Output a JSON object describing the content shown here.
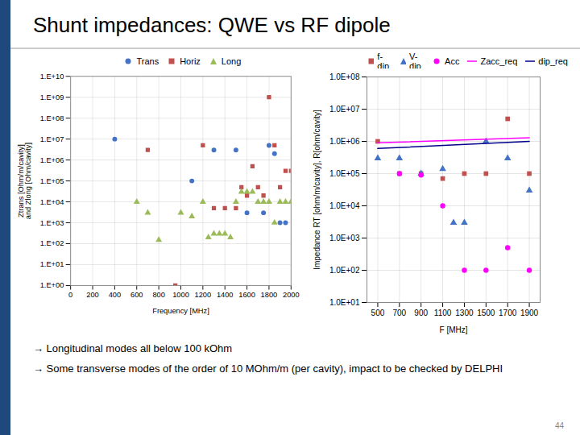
{
  "title": "Shunt impedances: QWE vs RF dipole",
  "annotations": [
    "→ Longitudinal modes all below 100 kOhm",
    "→ Some transverse modes of the order of 10 MOhm/m (per cavity), impact to be checked by DELPHI",
    "44"
  ],
  "chart_data": [
    {
      "type": "scatter",
      "xlabel": "Frequency [MHz]",
      "ylabel": "Ztrans [Ohm/m/cavity]\nand Zlong [Ohm/cavity]",
      "log": "y",
      "xlim": [
        0,
        2000
      ],
      "xticks": [
        0,
        200,
        400,
        600,
        800,
        1000,
        1200,
        1400,
        1600,
        1800,
        2000
      ],
      "ylim": [
        1,
        10000000000.0
      ],
      "yticks": [
        {
          "value": 1,
          "label": "1.E+00"
        },
        {
          "value": 10,
          "label": "1.E+01"
        },
        {
          "value": 100,
          "label": "1.E+02"
        },
        {
          "value": 1000,
          "label": "1.E+03"
        },
        {
          "value": 10000,
          "label": "1.E+04"
        },
        {
          "value": 100000,
          "label": "1.E+05"
        },
        {
          "value": 1000000,
          "label": "1.E+06"
        },
        {
          "value": 10000000,
          "label": "1.E+07"
        },
        {
          "value": 100000000,
          "label": "1.E+08"
        },
        {
          "value": 1000000000,
          "label": "1.E+09"
        },
        {
          "value": 10000000000,
          "label": "1.E+10"
        }
      ],
      "grid": true,
      "legend": "top",
      "series": [
        {
          "name": "Trans",
          "color": "#4472C4",
          "marker": "circle",
          "x": [
            400,
            1100,
            1300,
            1500,
            1600,
            1750,
            1800,
            1850,
            1900,
            1950
          ],
          "values": [
            10000000.0,
            100000.0,
            3000000.0,
            3000000.0,
            3000.0,
            3000.0,
            5000000.0,
            2000000.0,
            1000.0,
            1000.0
          ]
        },
        {
          "name": "Horiz",
          "color": "#C0504D",
          "marker": "square",
          "x": [
            700,
            950,
            1200,
            1300,
            1400,
            1500,
            1550,
            1600,
            1650,
            1700,
            1750,
            1800,
            1850,
            1900,
            1950,
            2000
          ],
          "values": [
            3000000.0,
            1,
            5000000.0,
            5000.0,
            5000.0,
            5000.0,
            50000.0,
            20000.0,
            500000.0,
            50000.0,
            20000.0,
            1000000000.0,
            5000000.0,
            50000.0,
            300000.0,
            300000.0
          ]
        },
        {
          "name": "Long",
          "color": "#9BBB59",
          "marker": "triangle",
          "x": [
            600,
            700,
            800,
            1000,
            1100,
            1200,
            1250,
            1300,
            1350,
            1400,
            1450,
            1500,
            1550,
            1600,
            1650,
            1700,
            1750,
            1800,
            1850,
            1900,
            1950,
            2000
          ],
          "values": [
            10000.0,
            3000.0,
            150,
            3000.0,
            2000.0,
            10000.0,
            200.0,
            300.0,
            300.0,
            300.0,
            200.0,
            10000.0,
            30000.0,
            30000.0,
            30000.0,
            10000.0,
            10000.0,
            10000.0,
            1000.0,
            10000.0,
            10000.0,
            10000.0
          ]
        }
      ]
    },
    {
      "type": "scatter",
      "xlabel": "F [MHz]",
      "ylabel": "Impedance RT [ohm/m/cavity], R[ohm/cavity]",
      "log": "y",
      "xlim": [
        400,
        2000
      ],
      "xticks": [
        500,
        700,
        900,
        1100,
        1300,
        1500,
        1700,
        1900
      ],
      "ylim": [
        10,
        100000000.0
      ],
      "yticks": [
        {
          "value": 10,
          "label": "1.0E+01"
        },
        {
          "value": 100,
          "label": "1.0E+02"
        },
        {
          "value": 1000,
          "label": "1.0E+03"
        },
        {
          "value": 10000,
          "label": "1.0E+04"
        },
        {
          "value": 100000,
          "label": "1.0E+05"
        },
        {
          "value": 1000000,
          "label": "1.0E+06"
        },
        {
          "value": 10000000,
          "label": "1.0E+07"
        },
        {
          "value": 100000000,
          "label": "1.0E+08"
        }
      ],
      "grid": true,
      "legend": "upper right",
      "series": [
        {
          "name": "f-dip",
          "type": "scatter",
          "color": "#C0504D",
          "marker": "square",
          "x": [
            500,
            700,
            900,
            1100,
            1300,
            1500,
            1700,
            1900
          ],
          "values": [
            1000000.0,
            100000.0,
            100000.0,
            70000.0,
            100000.0,
            100000.0,
            5000000.0,
            100000.0
          ]
        },
        {
          "name": "V-dip",
          "type": "scatter",
          "color": "#4472C4",
          "marker": "triangle",
          "x": [
            500,
            700,
            900,
            1100,
            1200,
            1300,
            1500,
            1700,
            1900
          ],
          "values": [
            300000.0,
            300000.0,
            100000.0,
            140000.0,
            3000.0,
            3000.0,
            1000000.0,
            300000.0,
            30000.0
          ]
        },
        {
          "name": "Acc",
          "type": "scatter",
          "color": "#FF00FF",
          "marker": "circle",
          "x": [
            700,
            900,
            1100,
            1300,
            1500,
            1700,
            1900
          ],
          "values": [
            100000.0,
            90000.0,
            10000.0,
            100.0,
            100.0,
            500.0,
            100.0
          ]
        },
        {
          "name": "Zacc_req",
          "type": "line",
          "color": "#FF00FF",
          "x": [
            500,
            1900
          ],
          "values": [
            900000.0,
            1300000.0
          ]
        },
        {
          "name": "dip_req",
          "type": "line",
          "color": "#00008B",
          "x": [
            500,
            1900
          ],
          "values": [
            600000.0,
            1000000.0
          ]
        }
      ]
    }
  ]
}
